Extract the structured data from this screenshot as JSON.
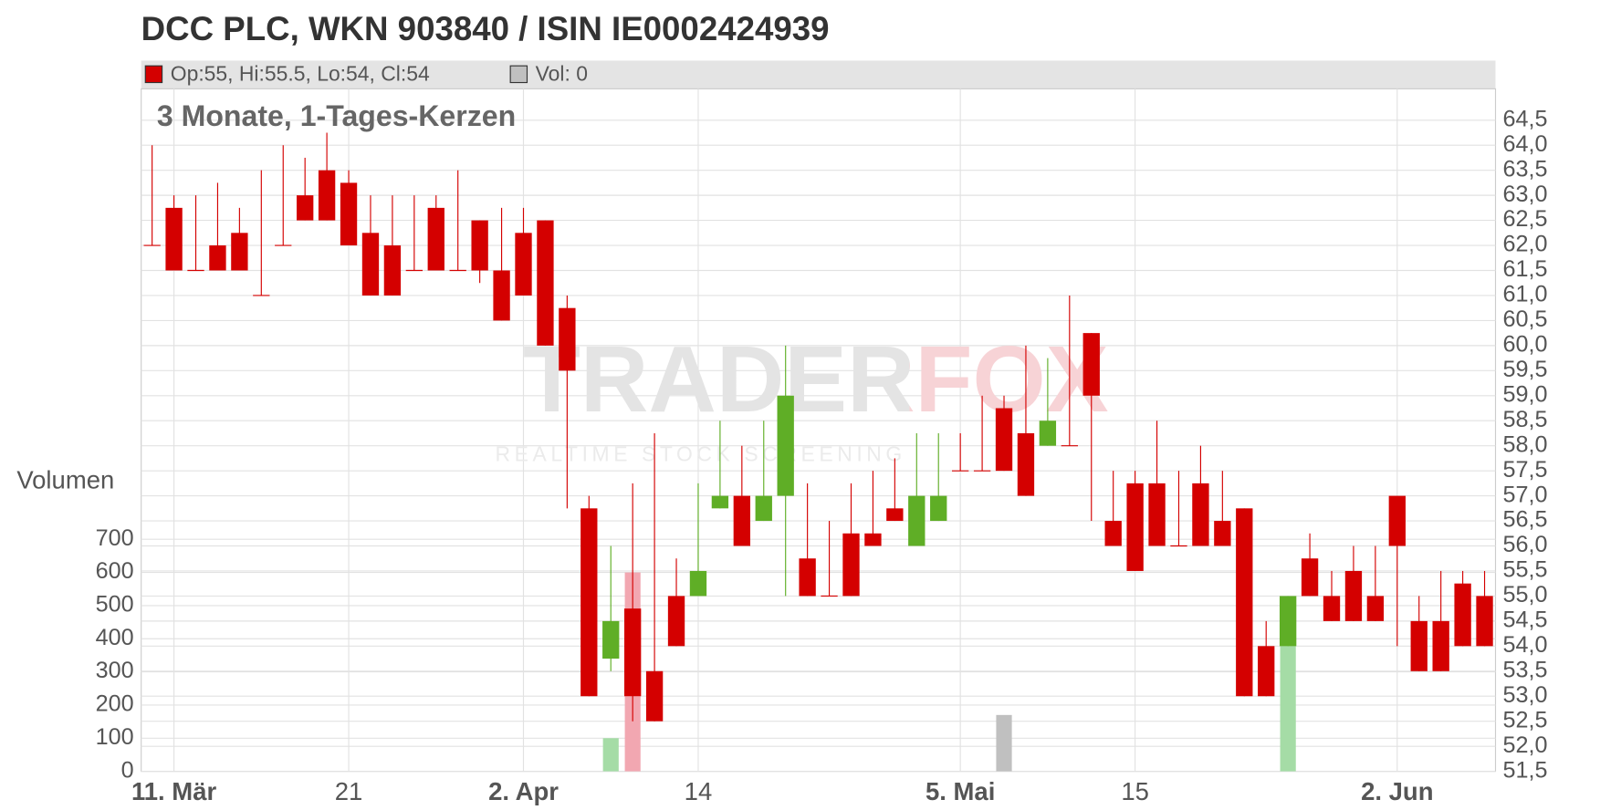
{
  "chart_data": {
    "type": "candlestick",
    "title": "DCC PLC, WKN 903840 / ISIN IE0002424939",
    "legend": {
      "ohlc": "Op:55, Hi:55.5, Lo:54, Cl:54",
      "volume": "Vol: 0"
    },
    "subtitle": "3 Monate, 1-Tages-Kerzen",
    "watermark": {
      "brand": "TRADERFOX",
      "tagline": "REALTIME STOCK SCREENING"
    },
    "up_color": "#5fae26",
    "down_color": "#d40000",
    "categories": [
      null,
      "11. Mär",
      null,
      null,
      null,
      null,
      null,
      null,
      null,
      "21",
      null,
      null,
      null,
      null,
      null,
      null,
      null,
      "2. Apr",
      null,
      null,
      null,
      null,
      null,
      null,
      null,
      "14",
      null,
      null,
      null,
      null,
      null,
      null,
      null,
      null,
      null,
      null,
      null,
      "5. Mai",
      null,
      null,
      null,
      null,
      null,
      null,
      null,
      "15",
      null,
      null,
      null,
      null,
      null,
      null,
      null,
      null,
      null,
      null,
      null,
      "2. Jun",
      null,
      null,
      null,
      null
    ],
    "open": [
      62,
      62.75,
      61.5,
      62,
      62.25,
      61,
      62,
      63,
      63.5,
      63.25,
      62.25,
      62,
      61.5,
      62.75,
      61.5,
      62.5,
      61.5,
      62.25,
      62.5,
      60.75,
      56.75,
      53.75,
      54.75,
      53.5,
      55,
      55,
      56.75,
      57,
      56.5,
      57,
      55.75,
      55,
      56.25,
      56.25,
      56.75,
      56,
      56.5,
      57.5,
      57.5,
      58.75,
      58.25,
      58,
      58,
      60.25,
      56.5,
      57.25,
      57.25,
      56,
      57.25,
      56.5,
      56.75,
      54,
      54,
      55.75,
      55,
      55.5,
      55,
      57,
      54.5,
      54.5,
      55.25,
      55
    ],
    "high": [
      64,
      63,
      63,
      63.25,
      62.75,
      63.5,
      64,
      63.75,
      64.25,
      63.5,
      63,
      63,
      63,
      63,
      63.5,
      62.5,
      62.75,
      62.75,
      62.5,
      61,
      57,
      56,
      57.25,
      58.25,
      55.75,
      57.25,
      58.5,
      58,
      58.5,
      60,
      57.25,
      56.5,
      57.25,
      57.5,
      57.75,
      58.25,
      58.25,
      58.25,
      59,
      59,
      60,
      59.75,
      61,
      60.25,
      57.5,
      57.5,
      58.5,
      57.5,
      58,
      57.5,
      56.75,
      54.5,
      55,
      56.25,
      55.5,
      56,
      56,
      57,
      55,
      55.5,
      55.5,
      55.5
    ],
    "low": [
      62,
      61.5,
      61.5,
      61.5,
      61.5,
      61,
      62,
      62.5,
      62.5,
      62,
      61,
      61,
      61.5,
      61.5,
      61.5,
      61.25,
      60.5,
      61,
      60,
      56.75,
      53,
      53.5,
      52.5,
      52.5,
      54,
      55,
      56.75,
      56,
      56.5,
      55,
      55,
      55,
      55,
      56,
      56.5,
      56,
      56.5,
      57.5,
      57.5,
      57.5,
      57,
      58,
      58,
      56.5,
      56,
      55.5,
      56,
      56,
      56,
      56,
      53,
      53,
      54,
      55,
      54.5,
      54.5,
      54.5,
      54,
      53.5,
      53.5,
      54,
      54
    ],
    "close": [
      62,
      61.5,
      61.5,
      61.5,
      61.5,
      61,
      62,
      62.5,
      62.5,
      62,
      61,
      61,
      61.5,
      61.5,
      61.5,
      61.5,
      60.5,
      61,
      60,
      59.5,
      53,
      54.5,
      53,
      52.5,
      54,
      55.5,
      57,
      56,
      57,
      59,
      55,
      55,
      55,
      56,
      56.5,
      57,
      57,
      57.5,
      57.5,
      57.5,
      57,
      58.5,
      58,
      59,
      56,
      55.5,
      56,
      56,
      56,
      56,
      53,
      53,
      55,
      55,
      54.5,
      54.5,
      54.5,
      56,
      53.5,
      53.5,
      54,
      54
    ],
    "ylim": [
      51.5,
      64.5
    ],
    "yticks": [
      {
        "value": 51.5,
        "label": "51,5"
      },
      {
        "value": 52,
        "label": "52,0"
      },
      {
        "value": 52.5,
        "label": "52,5"
      },
      {
        "value": 53,
        "label": "53,0"
      },
      {
        "value": 53.5,
        "label": "53,5"
      },
      {
        "value": 54,
        "label": "54,0"
      },
      {
        "value": 54.5,
        "label": "54,5"
      },
      {
        "value": 55,
        "label": "55,0"
      },
      {
        "value": 55.5,
        "label": "55,5"
      },
      {
        "value": 56,
        "label": "56,0"
      },
      {
        "value": 56.5,
        "label": "56,5"
      },
      {
        "value": 57,
        "label": "57,0"
      },
      {
        "value": 57.5,
        "label": "57,5"
      },
      {
        "value": 58,
        "label": "58,0"
      },
      {
        "value": 58.5,
        "label": "58,5"
      },
      {
        "value": 59,
        "label": "59,0"
      },
      {
        "value": 59.5,
        "label": "59,5"
      },
      {
        "value": 60,
        "label": "60,0"
      },
      {
        "value": 60.5,
        "label": "60,5"
      },
      {
        "value": 61,
        "label": "61,0"
      },
      {
        "value": 61.5,
        "label": "61,5"
      },
      {
        "value": 62,
        "label": "62,0"
      },
      {
        "value": 62.5,
        "label": "62,5"
      },
      {
        "value": 63,
        "label": "63,0"
      },
      {
        "value": 63.5,
        "label": "63,5"
      },
      {
        "value": 64,
        "label": "64,0"
      },
      {
        "value": 64.5,
        "label": "64,5"
      }
    ],
    "volume": {
      "label": "Volumen",
      "values": [
        0,
        0,
        0,
        0,
        0,
        0,
        0,
        0,
        0,
        0,
        0,
        0,
        0,
        0,
        0,
        0,
        0,
        0,
        0,
        0,
        0,
        100,
        600,
        0,
        0,
        0,
        0,
        0,
        0,
        0,
        0,
        0,
        0,
        0,
        0,
        0,
        0,
        0,
        0,
        170,
        0,
        0,
        0,
        0,
        0,
        0,
        0,
        0,
        0,
        0,
        0,
        0,
        380,
        0,
        0,
        0,
        0,
        0,
        0,
        0,
        0,
        0
      ],
      "colors": [
        "#ccc",
        "#ccc",
        "#ccc",
        "#ccc",
        "#ccc",
        "#ccc",
        "#ccc",
        "#ccc",
        "#ccc",
        "#ccc",
        "#ccc",
        "#ccc",
        "#ccc",
        "#ccc",
        "#ccc",
        "#ccc",
        "#ccc",
        "#ccc",
        "#ccc",
        "#ccc",
        "#ccc",
        "#a5dca6",
        "#f2a7b1",
        "#ccc",
        "#ccc",
        "#ccc",
        "#ccc",
        "#ccc",
        "#ccc",
        "#ccc",
        "#ccc",
        "#ccc",
        "#ccc",
        "#ccc",
        "#ccc",
        "#ccc",
        "#ccc",
        "#ccc",
        "#ccc",
        "#c0c0c0",
        "#ccc",
        "#ccc",
        "#ccc",
        "#ccc",
        "#ccc",
        "#ccc",
        "#ccc",
        "#ccc",
        "#ccc",
        "#ccc",
        "#ccc",
        "#ccc",
        "#a5dca6",
        "#ccc",
        "#ccc",
        "#ccc",
        "#ccc",
        "#ccc",
        "#ccc",
        "#ccc",
        "#ccc",
        "#ccc"
      ],
      "ylim": [
        0,
        700
      ],
      "yticks": [
        0,
        100,
        200,
        300,
        400,
        500,
        600,
        700
      ]
    },
    "grid": true
  }
}
